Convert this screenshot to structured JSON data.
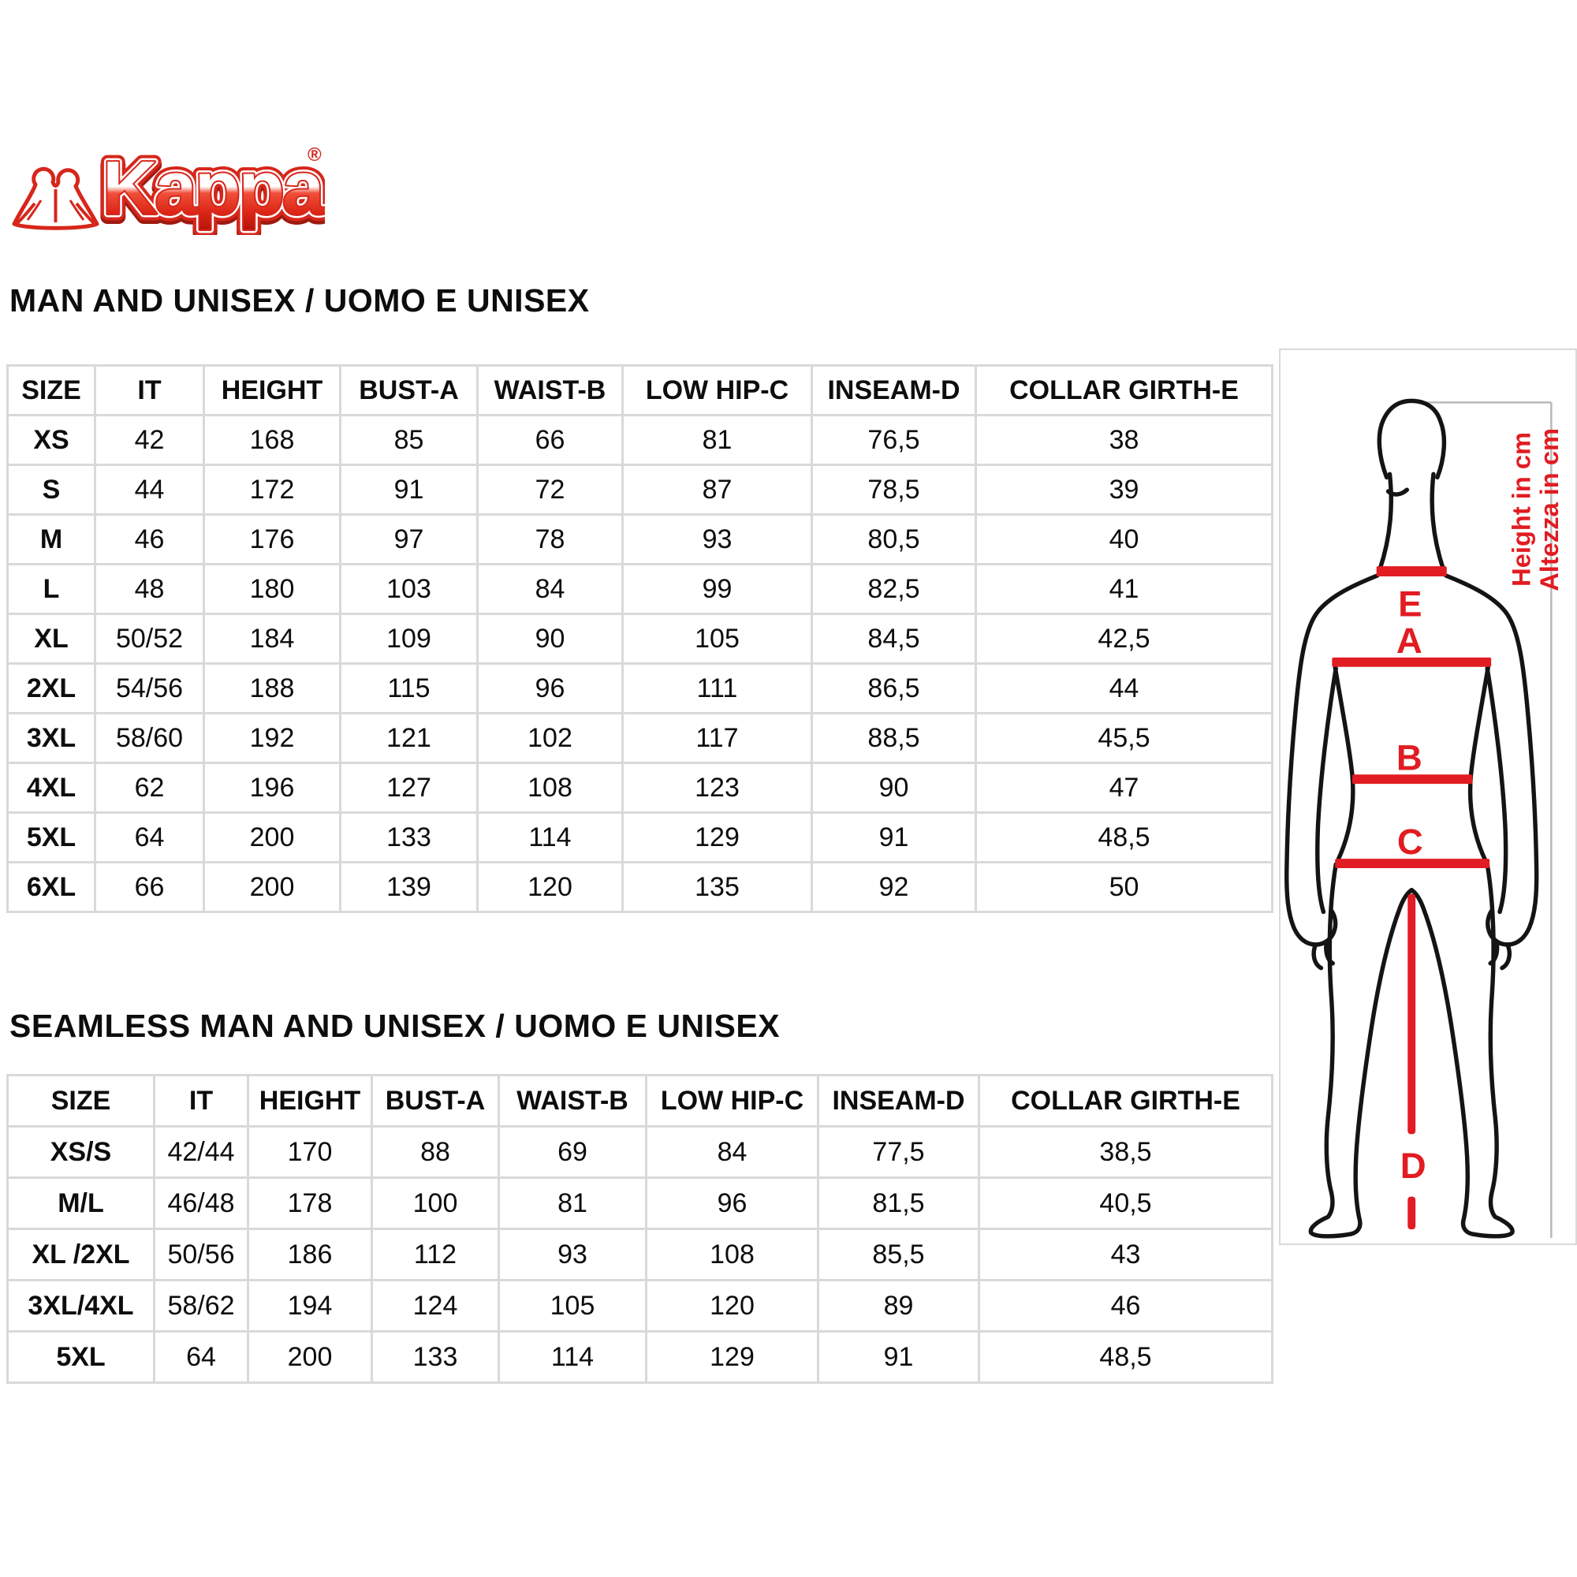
{
  "logo": {
    "brand": "Kappa",
    "registered": "®"
  },
  "table_man": {
    "title": "MAN AND UNISEX / UOMO E UNISEX",
    "columns": [
      "SIZE",
      "IT",
      "HEIGHT",
      "BUST-A",
      "WAIST-B",
      "LOW HIP-C",
      "INSEAM-D",
      "COLLAR GIRTH-E"
    ],
    "rows": [
      [
        "XS",
        "42",
        "168",
        "85",
        "66",
        "81",
        "76,5",
        "38"
      ],
      [
        "S",
        "44",
        "172",
        "91",
        "72",
        "87",
        "78,5",
        "39"
      ],
      [
        "M",
        "46",
        "176",
        "97",
        "78",
        "93",
        "80,5",
        "40"
      ],
      [
        "L",
        "48",
        "180",
        "103",
        "84",
        "99",
        "82,5",
        "41"
      ],
      [
        "XL",
        "50/52",
        "184",
        "109",
        "90",
        "105",
        "84,5",
        "42,5"
      ],
      [
        "2XL",
        "54/56",
        "188",
        "115",
        "96",
        "111",
        "86,5",
        "44"
      ],
      [
        "3XL",
        "58/60",
        "192",
        "121",
        "102",
        "117",
        "88,5",
        "45,5"
      ],
      [
        "4XL",
        "62",
        "196",
        "127",
        "108",
        "123",
        "90",
        "47"
      ],
      [
        "5XL",
        "64",
        "200",
        "133",
        "114",
        "129",
        "91",
        "48,5"
      ],
      [
        "6XL",
        "66",
        "200",
        "139",
        "120",
        "135",
        "92",
        "50"
      ]
    ]
  },
  "table_seamless": {
    "title": "SEAMLESS MAN AND UNISEX / UOMO E UNISEX",
    "columns": [
      "SIZE",
      "IT",
      "HEIGHT",
      "BUST-A",
      "WAIST-B",
      "LOW HIP-C",
      "INSEAM-D",
      "COLLAR GIRTH-E"
    ],
    "rows": [
      [
        "XS/S",
        "42/44",
        "170",
        "88",
        "69",
        "84",
        "77,5",
        "38,5"
      ],
      [
        "M/L",
        "46/48",
        "178",
        "100",
        "81",
        "96",
        "81,5",
        "40,5"
      ],
      [
        "XL /2XL",
        "50/56",
        "186",
        "112",
        "93",
        "108",
        "85,5",
        "43"
      ],
      [
        "3XL/4XL",
        "58/62",
        "194",
        "124",
        "105",
        "120",
        "89",
        "46"
      ],
      [
        "5XL",
        "64",
        "200",
        "133",
        "114",
        "129",
        "91",
        "48,5"
      ]
    ]
  },
  "diagram": {
    "letters": {
      "collar": "E",
      "bust": "A",
      "waist": "B",
      "low_hip": "C",
      "inseam": "D"
    },
    "height_label_en": "Height in cm",
    "height_label_it": "Altezza in cm"
  },
  "colors": {
    "accent_red": "#e11c22",
    "logo_red": "#d7261b",
    "table_border": "#d9d9d9",
    "body_outline": "#141414"
  }
}
